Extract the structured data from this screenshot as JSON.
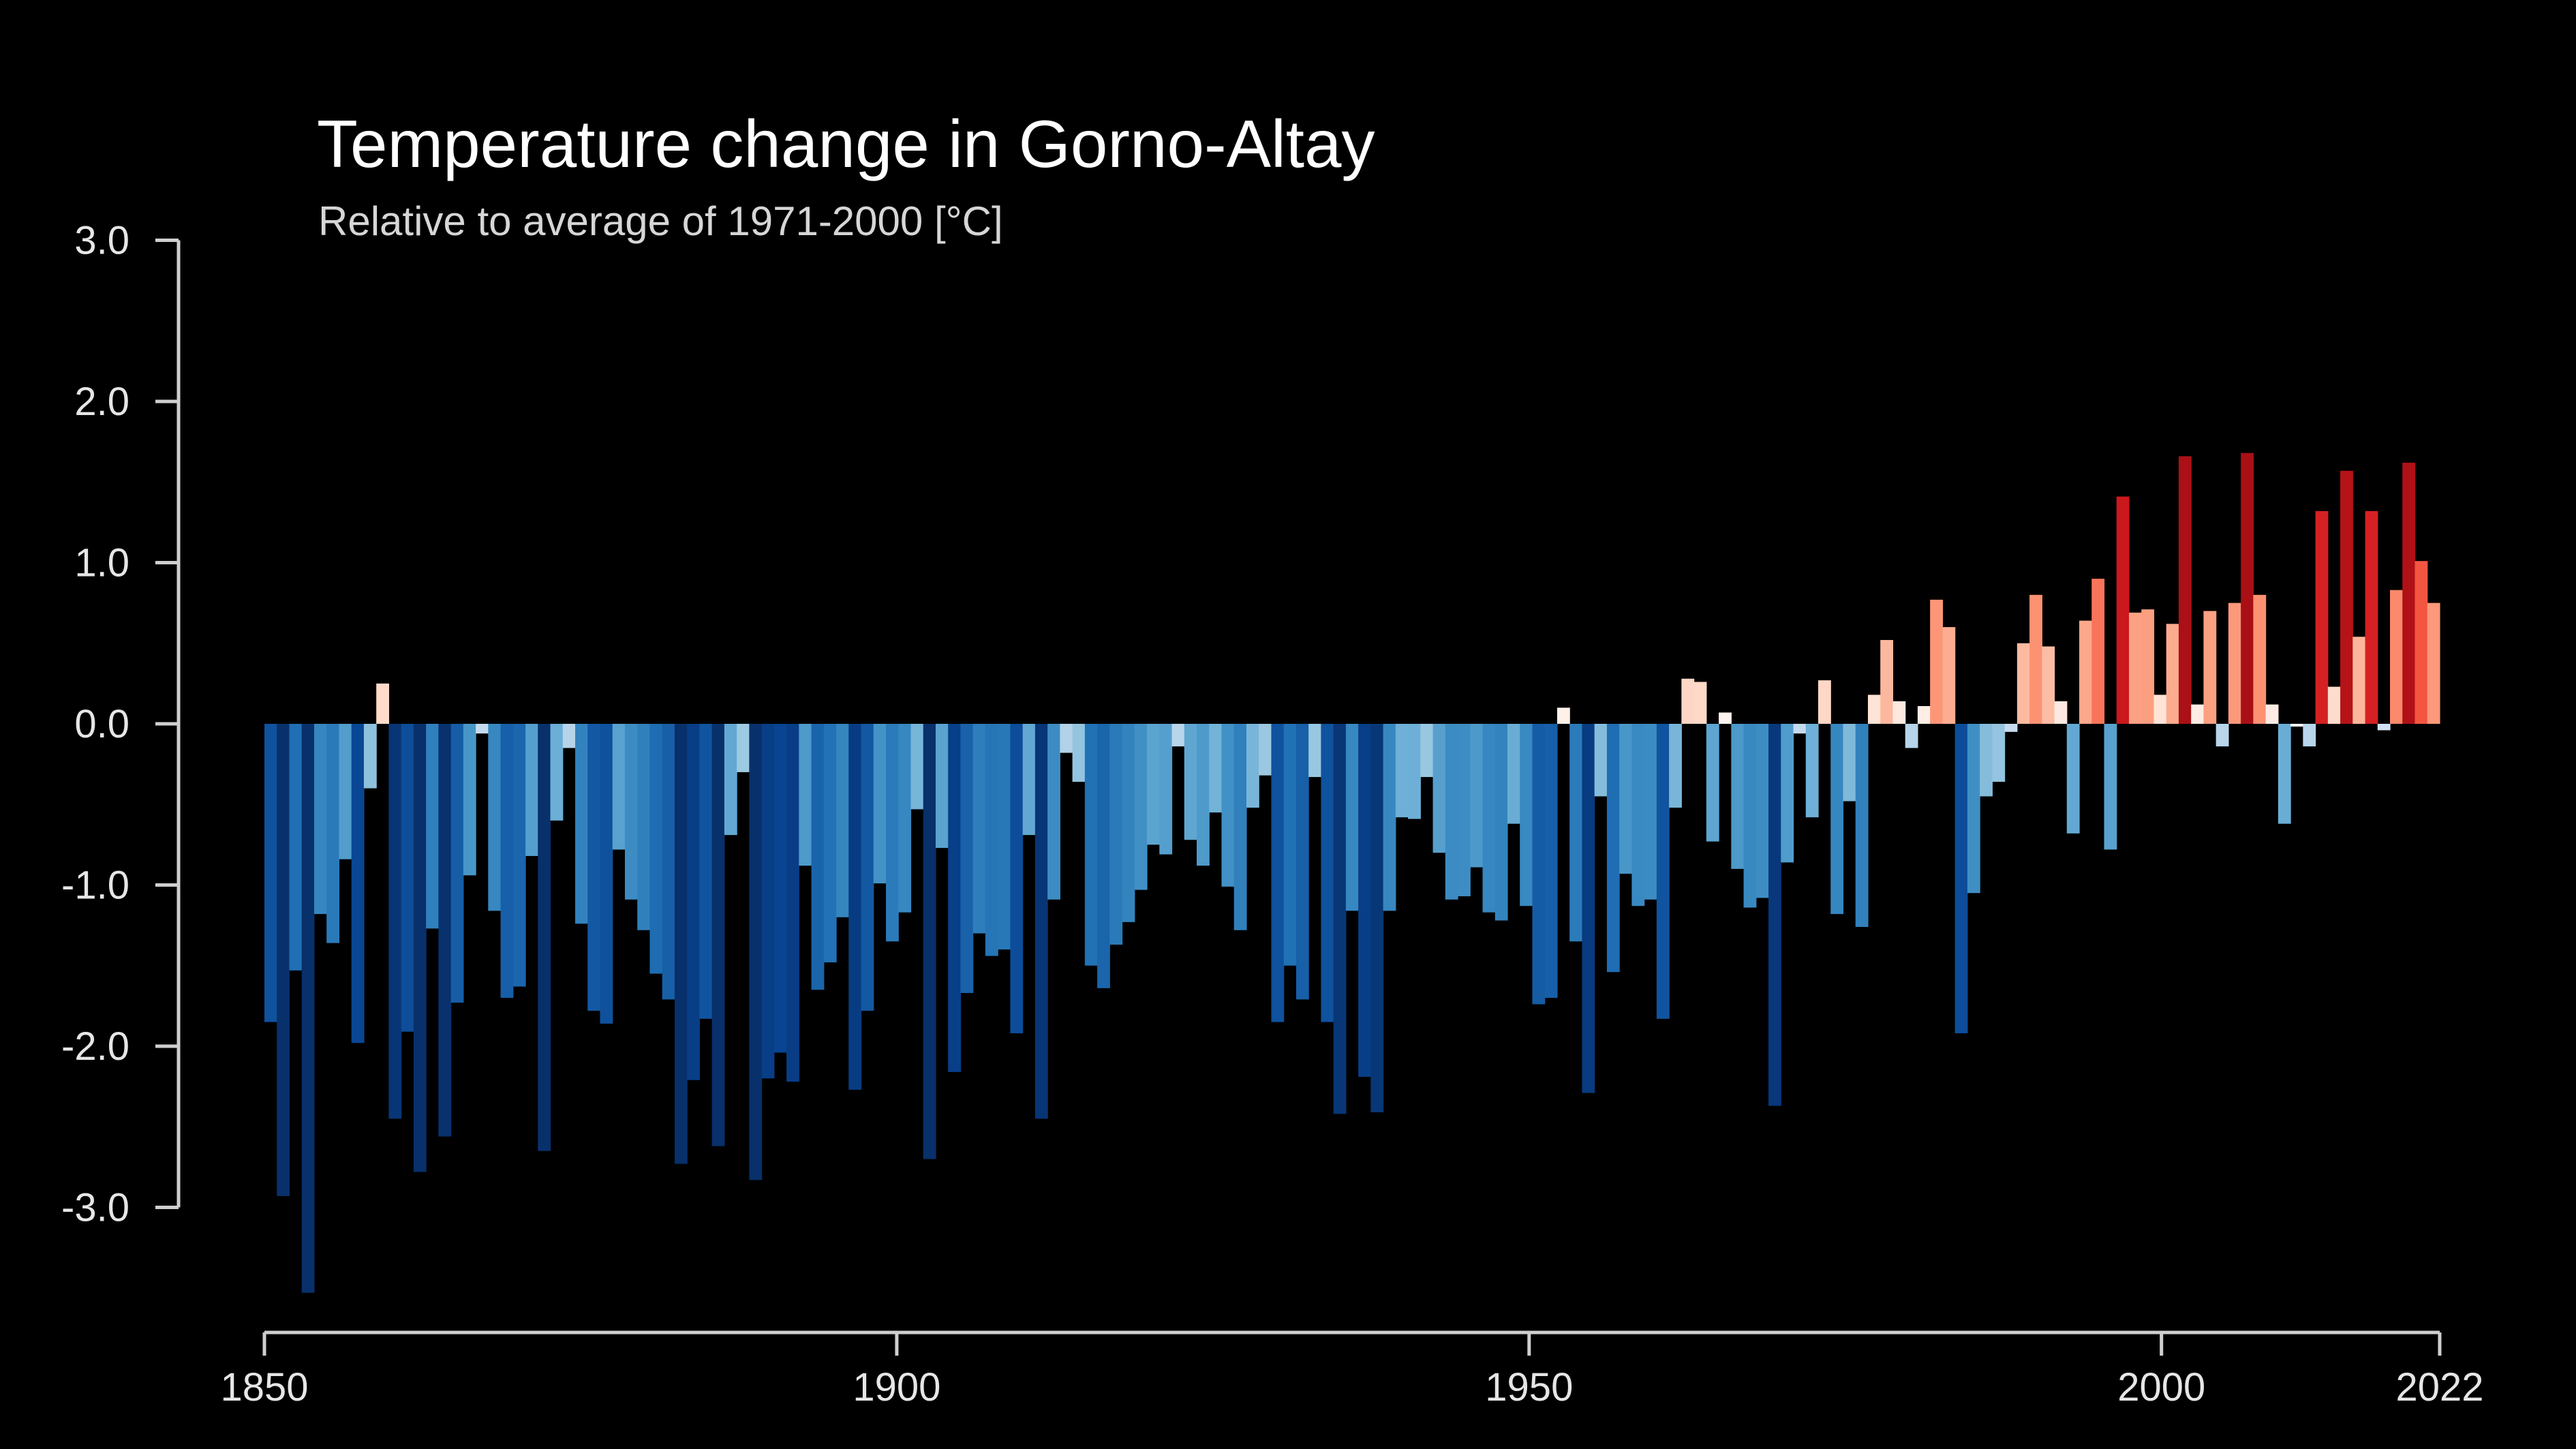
{
  "chart_data": {
    "type": "bar",
    "title": "Temperature change in Gorno-Altay",
    "subtitle": "Relative to average of 1971-2000  [°C]",
    "xlabel": "",
    "ylabel": "",
    "xlim": [
      1850,
      2022
    ],
    "ylim": [
      -3.6,
      3.0
    ],
    "x_ticks": [
      1850,
      1900,
      1950,
      2000,
      2022
    ],
    "y_ticks": [
      {
        "value": 3.0,
        "label": "3.0"
      },
      {
        "value": 2.0,
        "label": "2.0"
      },
      {
        "value": 1.0,
        "label": "1.0"
      },
      {
        "value": 0.0,
        "label": "0.0"
      },
      {
        "value": -1.0,
        "label": "-1.0"
      },
      {
        "value": -2.0,
        "label": "-2.0"
      },
      {
        "value": -3.0,
        "label": "-3.0"
      }
    ],
    "grid": false,
    "legend": "none",
    "start_year": 1850,
    "values": [
      -1.85,
      -2.93,
      -1.53,
      -3.53,
      -1.18,
      -1.36,
      -0.84,
      -1.98,
      -0.4,
      0.25,
      -2.45,
      -1.91,
      -2.78,
      -1.27,
      -2.56,
      -1.73,
      -0.94,
      -0.06,
      -1.16,
      -1.7,
      -1.63,
      -0.82,
      -2.65,
      -0.6,
      -0.15,
      -1.24,
      -1.78,
      -1.86,
      -0.78,
      -1.09,
      -1.28,
      -1.55,
      -1.71,
      -2.73,
      -2.21,
      -1.83,
      -2.62,
      -0.69,
      -0.3,
      -2.83,
      -2.2,
      -2.04,
      -2.22,
      -0.88,
      -1.65,
      -1.48,
      -1.2,
      -2.27,
      -1.78,
      -0.99,
      -1.35,
      -1.17,
      -0.53,
      -2.7,
      -0.77,
      -2.16,
      -1.67,
      -1.3,
      -1.44,
      -1.4,
      -1.92,
      -0.69,
      -2.45,
      -1.09,
      -0.18,
      -0.36,
      -1.5,
      -1.64,
      -1.37,
      -1.23,
      -1.03,
      -0.75,
      -0.81,
      -0.14,
      -0.72,
      -0.88,
      -0.55,
      -1.01,
      -1.28,
      -0.52,
      -0.32,
      -1.85,
      -1.5,
      -1.71,
      -0.33,
      -1.85,
      -2.42,
      -1.16,
      -2.19,
      -2.41,
      -1.16,
      -0.58,
      -0.59,
      -0.33,
      -0.8,
      -1.09,
      -1.07,
      -0.89,
      -1.17,
      -1.22,
      -0.62,
      -1.13,
      -1.74,
      -1.7,
      0.1,
      -1.35,
      -2.29,
      -0.45,
      -1.54,
      -0.93,
      -1.13,
      -1.09,
      -1.83,
      -0.52,
      0.28,
      0.26,
      -0.73,
      0.07,
      -0.9,
      -1.14,
      -1.08,
      -2.37,
      -0.86,
      -0.06,
      -0.58,
      0.27,
      -1.18,
      -0.48,
      -1.26,
      0.18,
      0.52,
      0.14,
      -0.15,
      0.11,
      0.77,
      0.6,
      -1.92,
      -1.05,
      -0.45,
      -0.36,
      -0.05,
      0.5,
      0.8,
      0.48,
      0.14,
      -0.68,
      0.64,
      0.9,
      -0.78,
      1.41,
      0.69,
      0.71,
      0.18,
      0.62,
      1.66,
      0.12,
      0.7,
      -0.14,
      0.75,
      1.68,
      0.8,
      0.12,
      -0.62,
      0.0,
      -0.14,
      1.32,
      0.23,
      1.57,
      0.54,
      1.32,
      -0.04,
      0.83,
      1.62,
      1.01,
      0.75
    ]
  }
}
